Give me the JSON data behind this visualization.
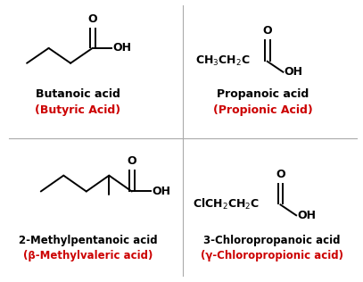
{
  "bg_color": "#ffffff",
  "iupac_color": "#000000",
  "common_color": "#cc0000",
  "line_color": "#000000",
  "compounds": [
    {
      "iupac": "Butanoic acid",
      "common": "(Butyric Acid)"
    },
    {
      "iupac": "Propanoic acid",
      "common": "(Propionic Acid)"
    },
    {
      "iupac": "2-Methylpentanoic acid",
      "common": "(β-Methylvaleric acid)"
    },
    {
      "iupac": "3-Chloropropanoic acid",
      "common": "(γ-Chloropropionic acid)"
    }
  ]
}
